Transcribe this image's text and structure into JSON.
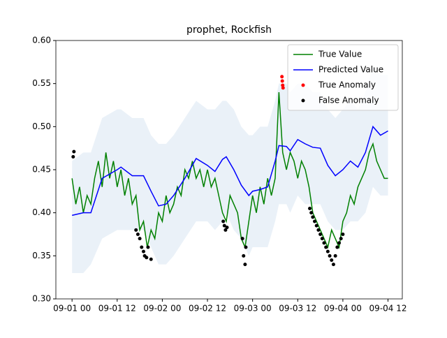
{
  "chart_data": {
    "type": "line",
    "title": "prophet, Rockfish",
    "xlim": [
      -4.3,
      87.8
    ],
    "xticks": [
      {
        "value": 0,
        "label": "09-01 00"
      },
      {
        "value": 12,
        "label": "09-01 12"
      },
      {
        "value": 24,
        "label": "09-02 00"
      },
      {
        "value": 36,
        "label": "09-02 12"
      },
      {
        "value": 48,
        "label": "09-03 00"
      },
      {
        "value": 60,
        "label": "09-03 12"
      },
      {
        "value": 72,
        "label": "09-04 00"
      },
      {
        "value": 84,
        "label": "09-04 12"
      }
    ],
    "ylim": [
      0.3,
      0.6
    ],
    "yticks": [
      {
        "value": 0.3,
        "label": "0.30"
      },
      0.35,
      {
        "value": 0.4,
        "label": "0.40"
      },
      0.45,
      {
        "value": 0.5,
        "label": "0.50"
      },
      0.55,
      {
        "value": 0.6,
        "label": "0.60"
      }
    ],
    "legend": "upper right",
    "band": {
      "color": "#dce8f4",
      "x": [
        0,
        3,
        5,
        8,
        12,
        13,
        16,
        19,
        21,
        23,
        25,
        27,
        30,
        33,
        36,
        38,
        40,
        41,
        43,
        45,
        47,
        48,
        50,
        52,
        54,
        55,
        57,
        58,
        60,
        62,
        64,
        66,
        68,
        70,
        72,
        74,
        76,
        78,
        80,
        82,
        84
      ],
      "upper": [
        0.46,
        0.47,
        0.47,
        0.51,
        0.52,
        0.52,
        0.51,
        0.51,
        0.49,
        0.48,
        0.48,
        0.49,
        0.51,
        0.53,
        0.52,
        0.52,
        0.53,
        0.53,
        0.52,
        0.5,
        0.49,
        0.49,
        0.5,
        0.5,
        0.53,
        0.55,
        0.55,
        0.54,
        0.55,
        0.55,
        0.54,
        0.54,
        0.52,
        0.51,
        0.52,
        0.53,
        0.52,
        0.54,
        0.57,
        0.56,
        0.56
      ],
      "lower": [
        0.33,
        0.33,
        0.34,
        0.37,
        0.38,
        0.38,
        0.38,
        0.38,
        0.36,
        0.34,
        0.34,
        0.35,
        0.37,
        0.39,
        0.39,
        0.38,
        0.39,
        0.4,
        0.38,
        0.37,
        0.35,
        0.36,
        0.36,
        0.36,
        0.39,
        0.41,
        0.41,
        0.4,
        0.42,
        0.41,
        0.41,
        0.41,
        0.39,
        0.38,
        0.38,
        0.39,
        0.39,
        0.4,
        0.43,
        0.42,
        0.42
      ]
    },
    "series": [
      {
        "name": "True Value",
        "color": "#008000",
        "kind": "line",
        "x": [
          0,
          1,
          2,
          3,
          4,
          5,
          6,
          7,
          8,
          9,
          10,
          11,
          12,
          13,
          14,
          15,
          16,
          17,
          18,
          19,
          20,
          21,
          22,
          23,
          24,
          25,
          26,
          27,
          28,
          29,
          30,
          31,
          32,
          33,
          34,
          35,
          36,
          37,
          38,
          39,
          40,
          41,
          42,
          43,
          44,
          45,
          46,
          47,
          48,
          49,
          50,
          51,
          52,
          53,
          54,
          55,
          56,
          57,
          58,
          59,
          60,
          61,
          62,
          63,
          64,
          65,
          66,
          67,
          68,
          69,
          70,
          71,
          72,
          73,
          74,
          75,
          76,
          77,
          78,
          79,
          80,
          81,
          82,
          83,
          84
        ],
        "values": [
          0.44,
          0.41,
          0.43,
          0.4,
          0.42,
          0.41,
          0.44,
          0.46,
          0.43,
          0.47,
          0.44,
          0.46,
          0.43,
          0.45,
          0.42,
          0.44,
          0.41,
          0.42,
          0.38,
          0.39,
          0.36,
          0.38,
          0.37,
          0.4,
          0.39,
          0.42,
          0.4,
          0.41,
          0.43,
          0.42,
          0.45,
          0.44,
          0.46,
          0.44,
          0.45,
          0.43,
          0.45,
          0.43,
          0.44,
          0.42,
          0.4,
          0.39,
          0.42,
          0.41,
          0.4,
          0.37,
          0.36,
          0.39,
          0.42,
          0.4,
          0.43,
          0.41,
          0.44,
          0.42,
          0.44,
          0.54,
          0.47,
          0.45,
          0.47,
          0.46,
          0.44,
          0.46,
          0.45,
          0.43,
          0.4,
          0.39,
          0.38,
          0.37,
          0.36,
          0.38,
          0.37,
          0.36,
          0.39,
          0.4,
          0.42,
          0.41,
          0.43,
          0.44,
          0.45,
          0.47,
          0.48,
          0.46,
          0.45,
          0.44,
          0.44
        ]
      },
      {
        "name": "Predicted Value",
        "color": "#0000ff",
        "kind": "line",
        "x": [
          0,
          3,
          5,
          8,
          12,
          13,
          16,
          19,
          21,
          23,
          25,
          27,
          30,
          33,
          36,
          38,
          40,
          41,
          43,
          45,
          47,
          48,
          50,
          52,
          54,
          55,
          57,
          58,
          60,
          62,
          64,
          66,
          68,
          70,
          72,
          74,
          76,
          78,
          80,
          82,
          84
        ],
        "values": [
          0.397,
          0.4,
          0.4,
          0.44,
          0.45,
          0.453,
          0.443,
          0.443,
          0.425,
          0.408,
          0.41,
          0.42,
          0.44,
          0.463,
          0.455,
          0.448,
          0.462,
          0.465,
          0.45,
          0.432,
          0.42,
          0.425,
          0.427,
          0.43,
          0.46,
          0.478,
          0.477,
          0.472,
          0.485,
          0.48,
          0.476,
          0.475,
          0.455,
          0.443,
          0.45,
          0.46,
          0.453,
          0.47,
          0.5,
          0.49,
          0.495
        ]
      },
      {
        "name": "True Anomaly",
        "color": "#ff0000",
        "kind": "scatter",
        "x": [
          55.8,
          55.9,
          56.0,
          56.1
        ],
        "values": [
          0.558,
          0.553,
          0.548,
          0.545
        ]
      },
      {
        "name": "False Anomaly",
        "color": "#000000",
        "kind": "scatter",
        "x": [
          0.3,
          0.5,
          17.0,
          17.5,
          18.0,
          18.5,
          19.0,
          19.3,
          19.8,
          20.2,
          21.0,
          40.2,
          40.5,
          40.8,
          41.2,
          45.3,
          45.6,
          46.0,
          46.2,
          63.2,
          63.6,
          64.0,
          64.5,
          65.0,
          65.5,
          66.0,
          66.5,
          67.0,
          67.5,
          68.0,
          68.5,
          69.0,
          69.5,
          70.0,
          70.5,
          71.0,
          71.5,
          72.0
        ],
        "values": [
          0.465,
          0.471,
          0.38,
          0.375,
          0.37,
          0.36,
          0.355,
          0.35,
          0.348,
          0.36,
          0.346,
          0.39,
          0.385,
          0.38,
          0.383,
          0.37,
          0.35,
          0.34,
          0.36,
          0.405,
          0.4,
          0.395,
          0.39,
          0.385,
          0.38,
          0.375,
          0.37,
          0.365,
          0.36,
          0.355,
          0.35,
          0.345,
          0.34,
          0.35,
          0.36,
          0.365,
          0.37,
          0.375
        ]
      }
    ]
  }
}
